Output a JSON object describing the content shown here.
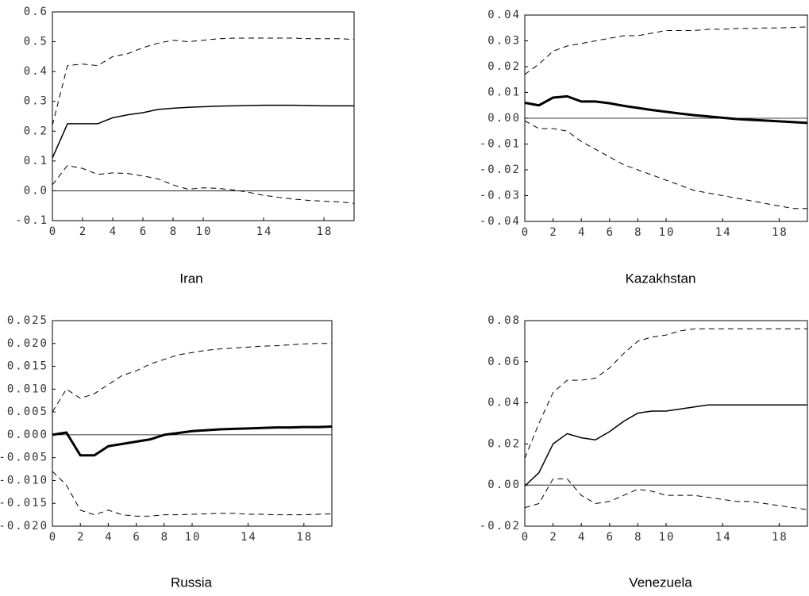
{
  "chart_data": [
    {
      "type": "line",
      "title": "Iran",
      "x": [
        0,
        1,
        2,
        3,
        4,
        5,
        6,
        7,
        8,
        9,
        10,
        11,
        12,
        13,
        14,
        15,
        16,
        17,
        18,
        19,
        20
      ],
      "xlim": [
        0,
        20
      ],
      "xticks": [
        0,
        2,
        4,
        6,
        8,
        10,
        14,
        18
      ],
      "ylim": [
        -0.1,
        0.6
      ],
      "yticks": [
        {
          "value": 0.6,
          "label": "0.6"
        },
        {
          "value": 0.5,
          "label": "0.5"
        },
        {
          "value": 0.4,
          "label": "0.4"
        },
        {
          "value": 0.3,
          "label": "0.3"
        },
        {
          "value": 0.2,
          "label": "0.2"
        },
        {
          "value": 0.1,
          "label": "0.1"
        },
        {
          "value": 0,
          "label": "0.0"
        },
        {
          "value": -0.1,
          "label": "-0.1"
        }
      ],
      "zero_line": true,
      "series": [
        {
          "color": "#000000",
          "style": "solid",
          "width": 1.5,
          "values": [
            0.11,
            0.225,
            0.225,
            0.225,
            0.245,
            0.255,
            0.262,
            0.273,
            0.277,
            0.28,
            0.282,
            0.284,
            0.285,
            0.286,
            0.287,
            0.287,
            0.287,
            0.286,
            0.285,
            0.285,
            0.285
          ]
        },
        {
          "color": "#000000",
          "style": "dashed",
          "width": 1,
          "values": [
            0.22,
            0.42,
            0.425,
            0.42,
            0.45,
            0.46,
            0.48,
            0.495,
            0.505,
            0.5,
            0.505,
            0.51,
            0.512,
            0.512,
            0.512,
            0.512,
            0.512,
            0.51,
            0.51,
            0.51,
            0.508
          ]
        },
        {
          "color": "#000000",
          "style": "dashed",
          "width": 1,
          "values": [
            0.02,
            0.085,
            0.075,
            0.055,
            0.06,
            0.058,
            0.05,
            0.04,
            0.02,
            0.005,
            0.01,
            0.008,
            0.003,
            -0.005,
            -0.015,
            -0.022,
            -0.028,
            -0.032,
            -0.035,
            -0.037,
            -0.042
          ]
        }
      ]
    },
    {
      "type": "line",
      "title": "Kazakhstan",
      "x": [
        0,
        1,
        2,
        3,
        4,
        5,
        6,
        7,
        8,
        9,
        10,
        11,
        12,
        13,
        14,
        15,
        16,
        17,
        18,
        19,
        20
      ],
      "xlim": [
        0,
        20
      ],
      "xticks": [
        0,
        2,
        4,
        6,
        8,
        10,
        14,
        18
      ],
      "ylim": [
        -0.04,
        0.04
      ],
      "yticks": [
        {
          "value": 0.04,
          "label": "0.04"
        },
        {
          "value": 0.03,
          "label": "0.03"
        },
        {
          "value": 0.02,
          "label": "0.02"
        },
        {
          "value": 0.01,
          "label": "0.01"
        },
        {
          "value": 0,
          "label": "0.00"
        },
        {
          "value": -0.01,
          "label": "-0.01"
        },
        {
          "value": -0.02,
          "label": "-0.02"
        },
        {
          "value": -0.03,
          "label": "-0.03"
        },
        {
          "value": -0.04,
          "label": "-0.04"
        }
      ],
      "zero_line": true,
      "series": [
        {
          "color": "#000000",
          "style": "solid",
          "width": 3,
          "values": [
            0.006,
            0.005,
            0.008,
            0.0085,
            0.0065,
            0.0065,
            0.0058,
            0.0048,
            0.004,
            0.0032,
            0.0025,
            0.0018,
            0.0012,
            0.0007,
            0.0002,
            -0.0003,
            -0.0006,
            -0.0009,
            -0.0012,
            -0.0015,
            -0.0018
          ]
        },
        {
          "color": "#000000",
          "style": "dashed",
          "width": 1,
          "values": [
            0.017,
            0.021,
            0.026,
            0.028,
            0.029,
            0.03,
            0.031,
            0.032,
            0.032,
            0.033,
            0.034,
            0.034,
            0.034,
            0.0345,
            0.0345,
            0.0348,
            0.0348,
            0.035,
            0.035,
            0.0352,
            0.0354
          ]
        },
        {
          "color": "#000000",
          "style": "dashed",
          "width": 1,
          "values": [
            -0.001,
            -0.004,
            -0.004,
            -0.005,
            -0.009,
            -0.012,
            -0.015,
            -0.018,
            -0.02,
            -0.022,
            -0.024,
            -0.026,
            -0.028,
            -0.029,
            -0.03,
            -0.031,
            -0.032,
            -0.033,
            -0.034,
            -0.035,
            -0.035
          ]
        }
      ]
    },
    {
      "type": "line",
      "title": "Russia",
      "x": [
        0,
        1,
        2,
        3,
        4,
        5,
        6,
        7,
        8,
        9,
        10,
        11,
        12,
        13,
        14,
        15,
        16,
        17,
        18,
        19,
        20
      ],
      "xlim": [
        0,
        20
      ],
      "xticks": [
        0,
        2,
        4,
        6,
        8,
        10,
        14,
        18
      ],
      "ylim": [
        -0.02,
        0.025
      ],
      "yticks": [
        {
          "value": 0.025,
          "label": "0.025"
        },
        {
          "value": 0.02,
          "label": "0.020"
        },
        {
          "value": 0.015,
          "label": "0.015"
        },
        {
          "value": 0.01,
          "label": "0.010"
        },
        {
          "value": 0.005,
          "label": "0.005"
        },
        {
          "value": 0,
          "label": "0.000"
        },
        {
          "value": -0.005,
          "label": "-0.005"
        },
        {
          "value": -0.01,
          "label": "-0.010"
        },
        {
          "value": -0.015,
          "label": "-0.015"
        },
        {
          "value": -0.02,
          "label": "-0.020"
        }
      ],
      "zero_line": true,
      "series": [
        {
          "color": "#000000",
          "style": "solid",
          "width": 3,
          "values": [
            0,
            0.0005,
            -0.0045,
            -0.0045,
            -0.0025,
            -0.002,
            -0.0015,
            -0.001,
            0,
            0.0004,
            0.0008,
            0.001,
            0.0012,
            0.0013,
            0.0014,
            0.0015,
            0.0016,
            0.0016,
            0.0017,
            0.0017,
            0.0018
          ]
        },
        {
          "color": "#000000",
          "style": "dashed",
          "width": 1,
          "values": [
            0.005,
            0.01,
            0.008,
            0.009,
            0.011,
            0.013,
            0.014,
            0.0155,
            0.0165,
            0.0175,
            0.018,
            0.0185,
            0.0188,
            0.019,
            0.0192,
            0.0194,
            0.0195,
            0.0197,
            0.0199,
            0.02,
            0.02
          ]
        },
        {
          "color": "#000000",
          "style": "dashed",
          "width": 1,
          "values": [
            -0.008,
            -0.011,
            -0.0165,
            -0.0175,
            -0.0165,
            -0.0175,
            -0.0178,
            -0.0178,
            -0.0175,
            -0.0175,
            -0.0174,
            -0.0173,
            -0.0172,
            -0.0172,
            -0.0174,
            -0.0174,
            -0.0175,
            -0.0175,
            -0.0175,
            -0.0174,
            -0.0173
          ]
        }
      ]
    },
    {
      "type": "line",
      "title": "Venezuela",
      "x": [
        0,
        1,
        2,
        3,
        4,
        5,
        6,
        7,
        8,
        9,
        10,
        11,
        12,
        13,
        14,
        15,
        16,
        17,
        18,
        19,
        20
      ],
      "xlim": [
        0,
        20
      ],
      "xticks": [
        0,
        2,
        4,
        6,
        8,
        10,
        14,
        18
      ],
      "ylim": [
        -0.02,
        0.08
      ],
      "yticks": [
        {
          "value": 0.08,
          "label": "0.08"
        },
        {
          "value": 0.06,
          "label": "0.06"
        },
        {
          "value": 0.04,
          "label": "0.04"
        },
        {
          "value": 0.02,
          "label": "0.02"
        },
        {
          "value": 0,
          "label": "0.00"
        },
        {
          "value": -0.02,
          "label": "-0.02"
        }
      ],
      "zero_line": true,
      "series": [
        {
          "color": "#000000",
          "style": "solid",
          "width": 1.5,
          "values": [
            -0.0005,
            0.006,
            0.02,
            0.025,
            0.023,
            0.022,
            0.026,
            0.031,
            0.035,
            0.036,
            0.036,
            0.037,
            0.038,
            0.039,
            0.039,
            0.039,
            0.039,
            0.039,
            0.039,
            0.039,
            0.039
          ]
        },
        {
          "color": "#000000",
          "style": "dashed",
          "width": 1,
          "values": [
            0.013,
            0.03,
            0.045,
            0.051,
            0.051,
            0.052,
            0.057,
            0.064,
            0.07,
            0.072,
            0.073,
            0.075,
            0.076,
            0.076,
            0.076,
            0.076,
            0.076,
            0.076,
            0.076,
            0.076,
            0.076
          ]
        },
        {
          "color": "#000000",
          "style": "dashed",
          "width": 1,
          "values": [
            -0.011,
            -0.009,
            0.003,
            0.003,
            -0.005,
            -0.009,
            -0.008,
            -0.005,
            -0.002,
            -0.003,
            -0.005,
            -0.005,
            -0.005,
            -0.006,
            -0.007,
            -0.008,
            -0.008,
            -0.009,
            -0.01,
            -0.011,
            -0.012
          ]
        }
      ]
    }
  ]
}
